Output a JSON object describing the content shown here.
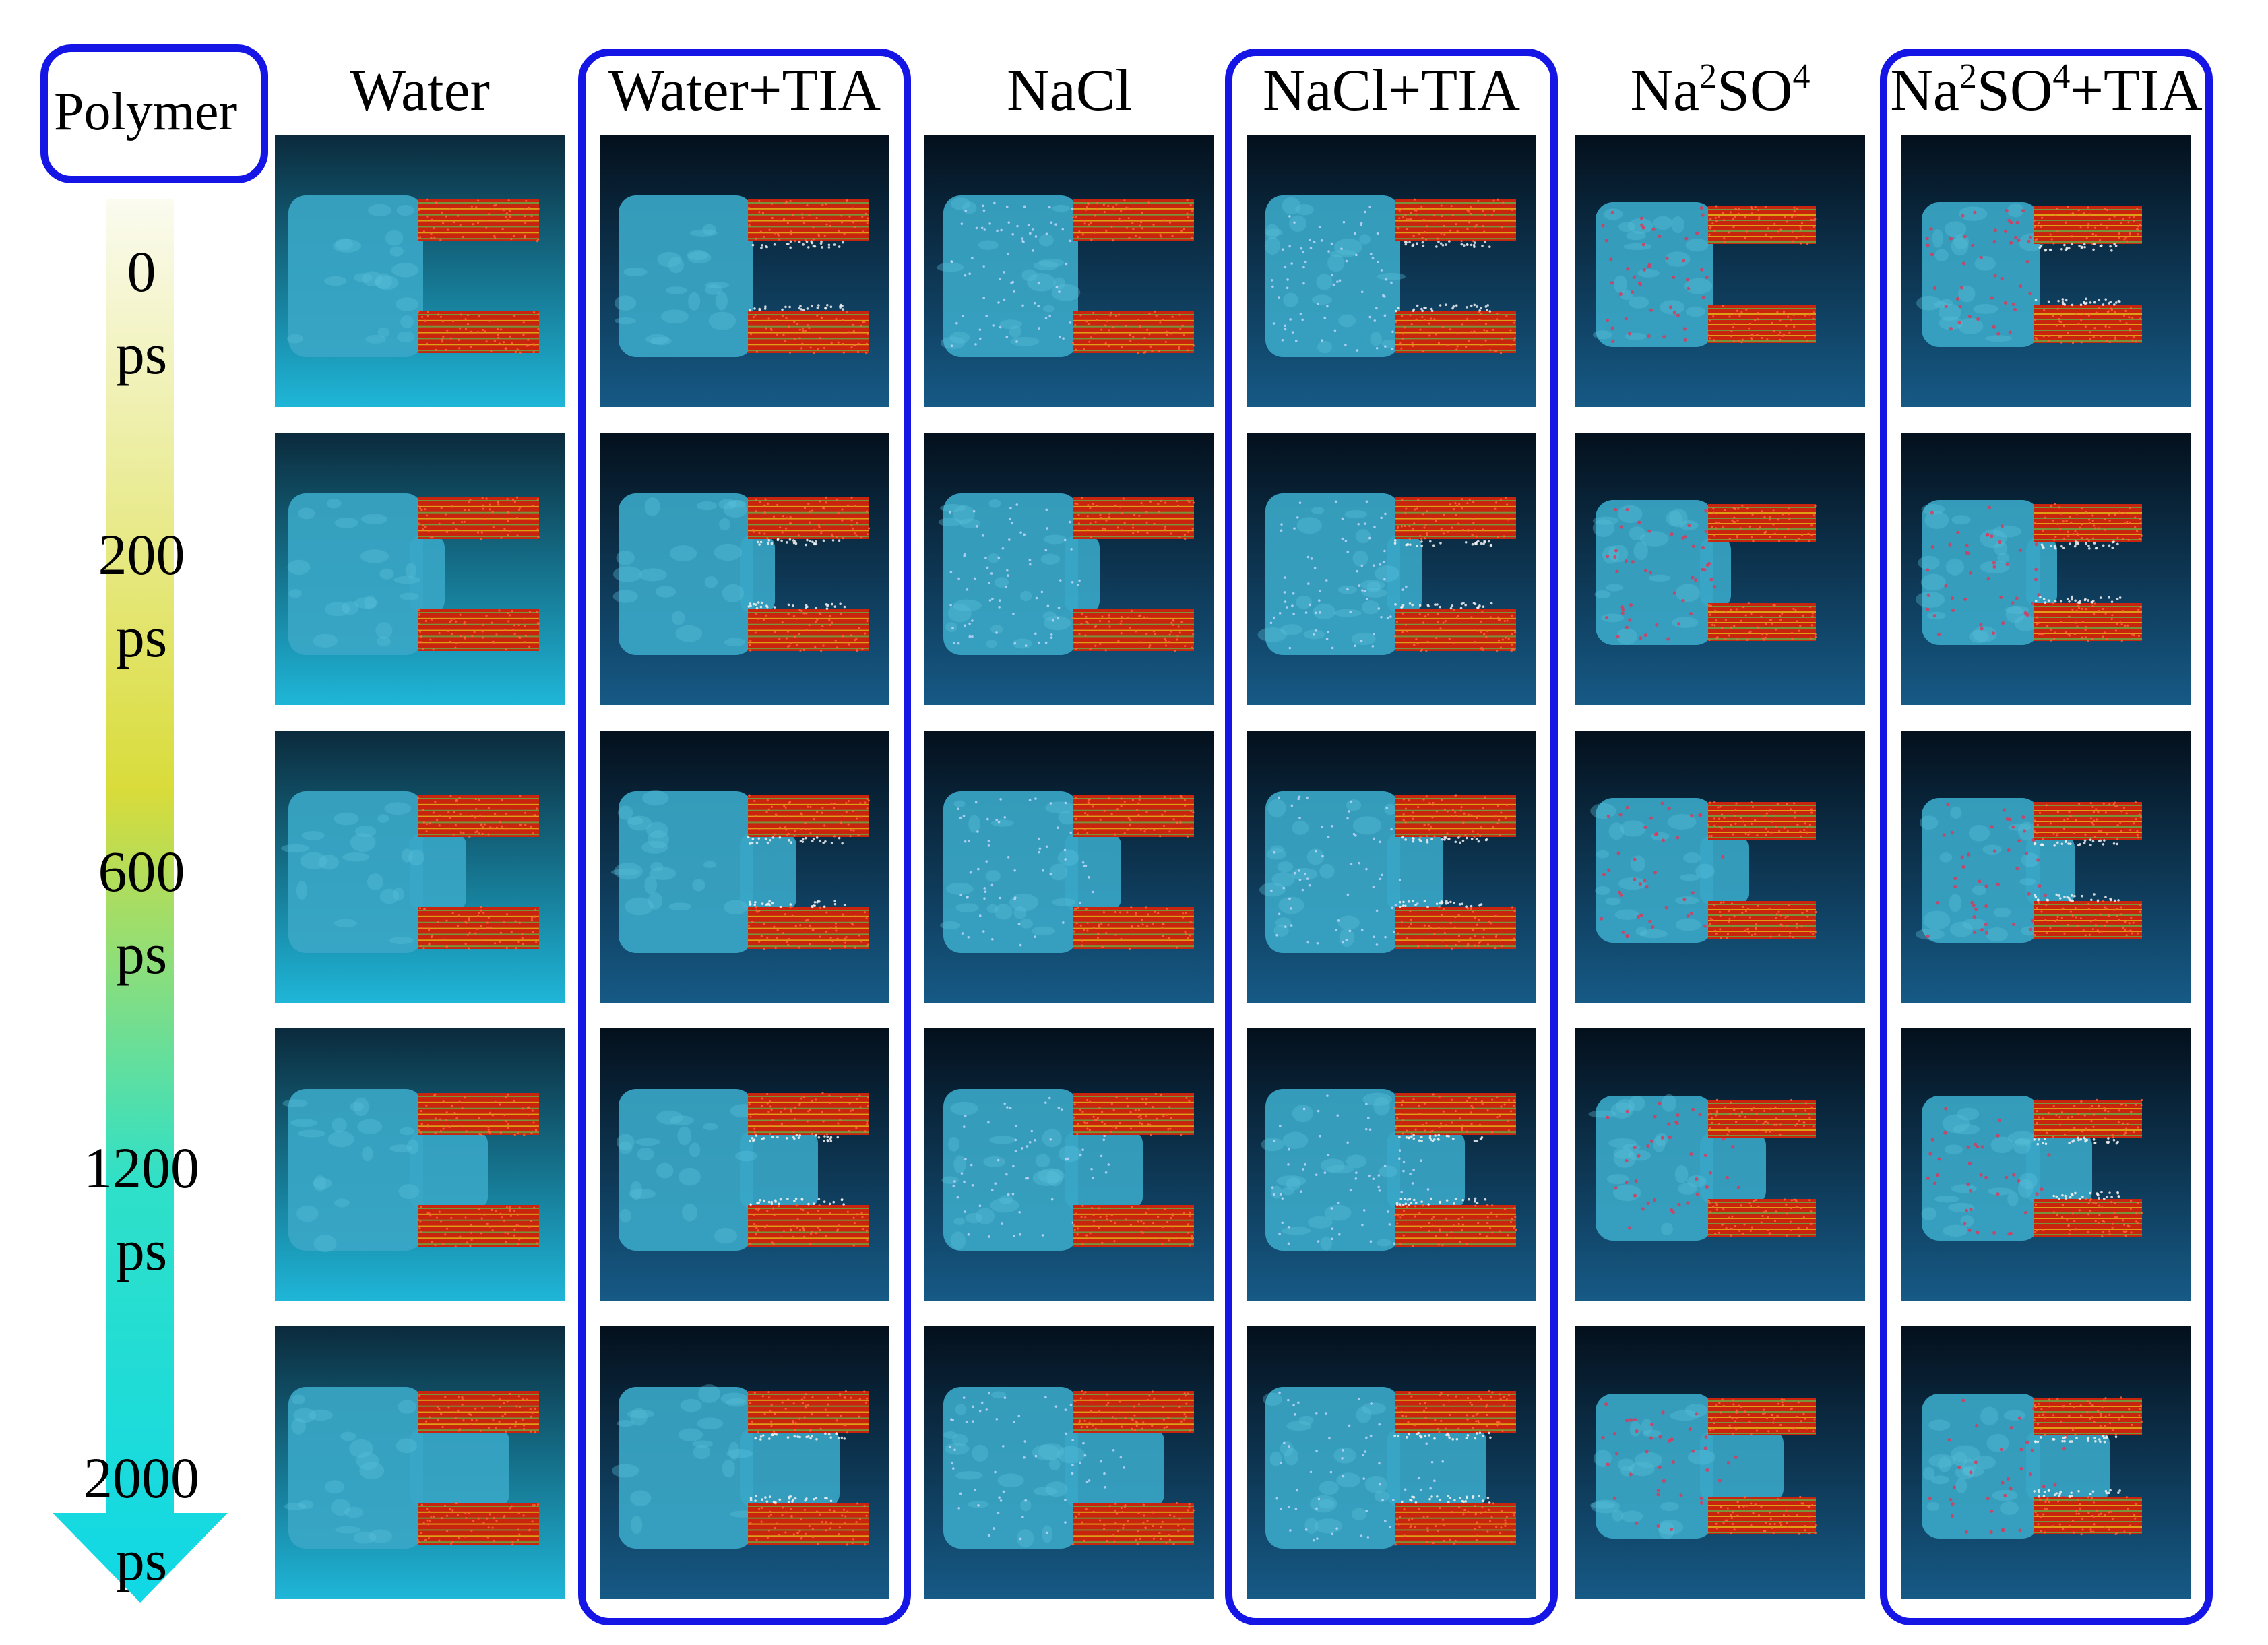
{
  "legend_label": "Polymer",
  "columns": [
    {
      "id": "water",
      "parts": [
        {
          "t": "Water"
        }
      ],
      "highlighted": false
    },
    {
      "id": "water-tia",
      "parts": [
        {
          "t": "Water+TIA"
        }
      ],
      "highlighted": true
    },
    {
      "id": "nacl",
      "parts": [
        {
          "t": "NaCl"
        }
      ],
      "highlighted": false
    },
    {
      "id": "nacl-tia",
      "parts": [
        {
          "t": "NaCl+TIA"
        }
      ],
      "highlighted": true
    },
    {
      "id": "na2so4",
      "parts": [
        {
          "t": "Na"
        },
        {
          "sub": "2"
        },
        {
          "t": "SO"
        },
        {
          "sub": "4"
        }
      ],
      "highlighted": false
    },
    {
      "id": "na2so4-tia",
      "parts": [
        {
          "t": "Na"
        },
        {
          "sub": "2"
        },
        {
          "t": "SO"
        },
        {
          "sub": "4"
        },
        {
          "t": "+TIA"
        }
      ],
      "highlighted": true
    }
  ],
  "time_steps": [
    {
      "value": "0",
      "unit": "ps"
    },
    {
      "value": "200",
      "unit": "ps"
    },
    {
      "value": "600",
      "unit": "ps"
    },
    {
      "value": "1200",
      "unit": "ps"
    },
    {
      "value": "2000",
      "unit": "ps"
    }
  ],
  "colors": {
    "frame": "#1515e6",
    "arrow_top": "#fbfbf0",
    "arrow_mid": "#d9dc3a",
    "arrow_bottom": "#10d8e6",
    "water_gel": "#3aa8c8",
    "polymer_red": "#d42a12",
    "ion_marks": "#e0365a"
  }
}
